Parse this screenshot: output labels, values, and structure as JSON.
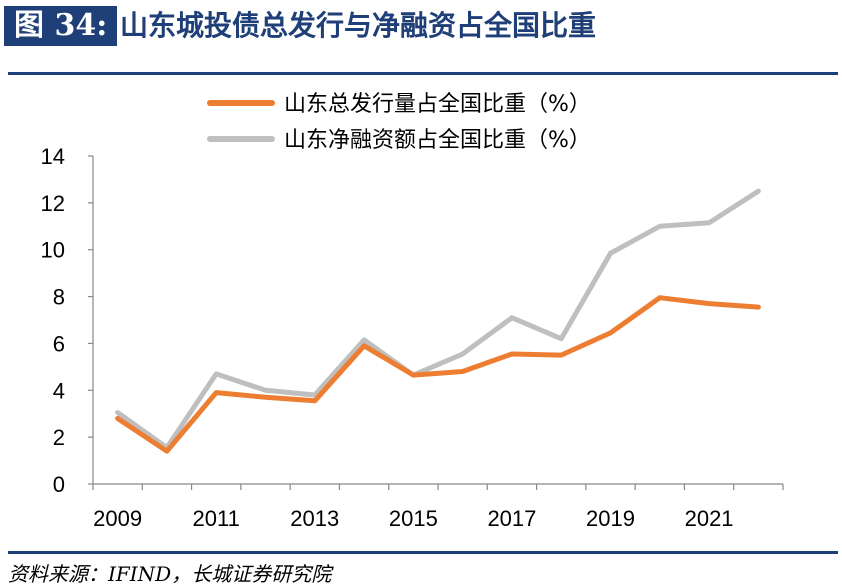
{
  "figure": {
    "number_label": "图 34:",
    "title": "山东城投债总发行与净融资占全国比重",
    "source": "资料来源：IFIND，长城证券研究院",
    "colors": {
      "accent": "#1f3f78"
    }
  },
  "chart_data": {
    "type": "line",
    "x": [
      2009,
      2010,
      2011,
      2012,
      2013,
      2014,
      2015,
      2016,
      2017,
      2018,
      2019,
      2020,
      2021,
      2022
    ],
    "x_tick_labels": [
      "2009",
      "2011",
      "2013",
      "2015",
      "2017",
      "2019",
      "2021"
    ],
    "ylim": [
      0,
      14
    ],
    "y_ticks": [
      0,
      2,
      4,
      6,
      8,
      10,
      12,
      14
    ],
    "grid": false,
    "legend_position": "top",
    "series": [
      {
        "name": "山东总发行量占全国比重（%）",
        "color": "#ed7d31",
        "values": [
          2.8,
          1.4,
          3.9,
          3.7,
          3.55,
          5.9,
          4.65,
          4.8,
          5.55,
          5.5,
          6.45,
          7.95,
          7.7,
          7.55
        ]
      },
      {
        "name": "山东净融资额占全国比重（%）",
        "color": "#bfbfbf",
        "values": [
          3.05,
          1.55,
          4.7,
          4.0,
          3.8,
          6.15,
          4.65,
          5.55,
          7.1,
          6.2,
          9.85,
          11.0,
          11.15,
          12.5
        ]
      }
    ]
  }
}
